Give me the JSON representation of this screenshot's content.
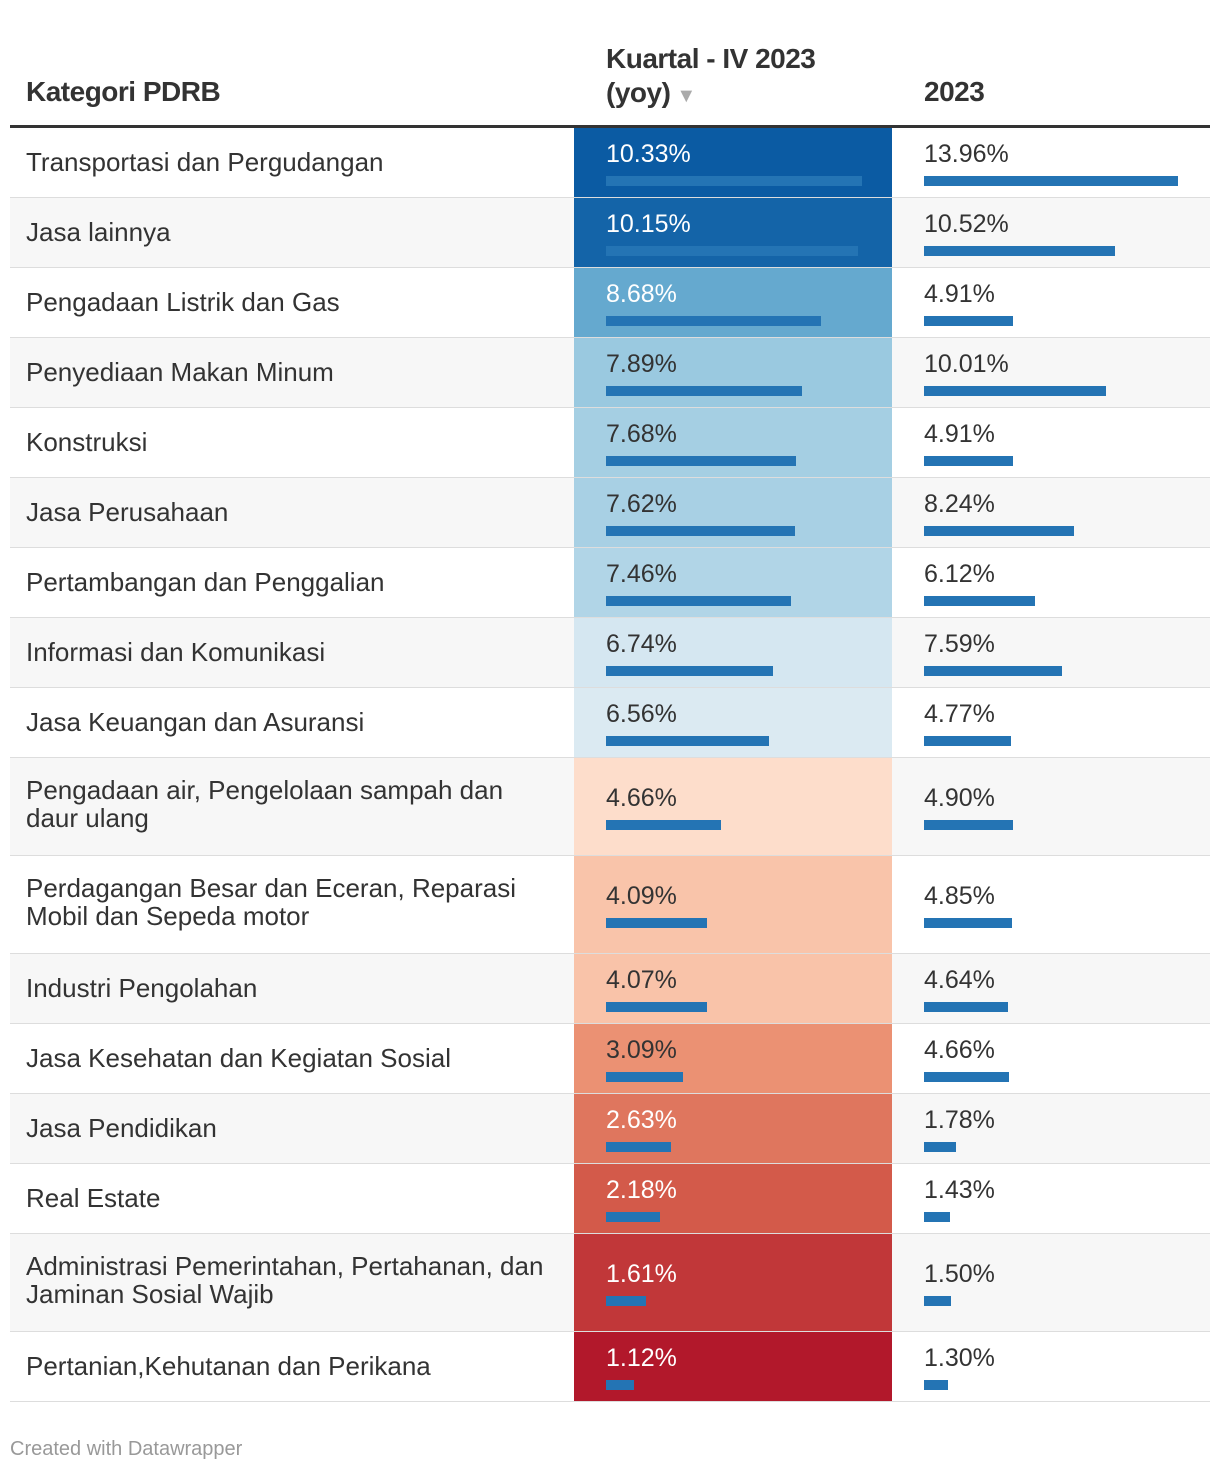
{
  "chart_data": {
    "type": "table",
    "columns": {
      "category": "Kategori PDRB",
      "q4": "Kuartal - IV 2023",
      "q4_suffix": "(yoy)",
      "year": "2023"
    },
    "sort_indicator": "▼",
    "bar_color": "#2474b4",
    "heatmap_colors": [
      "#b2182b",
      "#d6604d",
      "#f4a582",
      "#fddbc7",
      "#f7f7f7",
      "#d1e5f0",
      "#92c5de",
      "#4393c3",
      "#0b5ba3"
    ],
    "rows": [
      {
        "category": "Transportasi dan Pergudangan",
        "q4": 10.33,
        "year": 13.96
      },
      {
        "category": "Jasa lainnya",
        "q4": 10.15,
        "year": 10.52
      },
      {
        "category": "Pengadaan Listrik dan Gas",
        "q4": 8.68,
        "year": 4.91
      },
      {
        "category": "Penyediaan Makan Minum",
        "q4": 7.89,
        "year": 10.01
      },
      {
        "category": "Konstruksi",
        "q4": 7.68,
        "year": 4.91
      },
      {
        "category": "Jasa Perusahaan",
        "q4": 7.62,
        "year": 8.24
      },
      {
        "category": "Pertambangan dan Penggalian",
        "q4": 7.46,
        "year": 6.12
      },
      {
        "category": "Informasi dan Komunikasi",
        "q4": 6.74,
        "year": 7.59
      },
      {
        "category": "Jasa Keuangan dan Asuransi",
        "q4": 6.56,
        "year": 4.77
      },
      {
        "category": "Pengadaan air, Pengelolaan sampah dan daur ulang",
        "q4": 4.66,
        "year": 4.9
      },
      {
        "category": "Perdagangan Besar dan Eceran, Reparasi Mobil dan Sepeda motor",
        "q4": 4.09,
        "year": 4.85
      },
      {
        "category": "Industri Pengolahan",
        "q4": 4.07,
        "year": 4.64
      },
      {
        "category": "Jasa Kesehatan dan Kegiatan Sosial",
        "q4": 3.09,
        "year": 4.66
      },
      {
        "category": "Jasa Pendidikan",
        "q4": 2.63,
        "year": 1.78
      },
      {
        "category": "Real Estate",
        "q4": 2.18,
        "year": 1.43
      },
      {
        "category": "Administrasi Pemerintahan, Pertahanan, dan Jaminan Sosial Wajib",
        "q4": 1.61,
        "year": 1.5
      },
      {
        "category": "Pertanian,Kehutanan dan Perikana",
        "q4": 1.12,
        "year": 1.3
      }
    ]
  },
  "footer": "Created with Datawrapper"
}
